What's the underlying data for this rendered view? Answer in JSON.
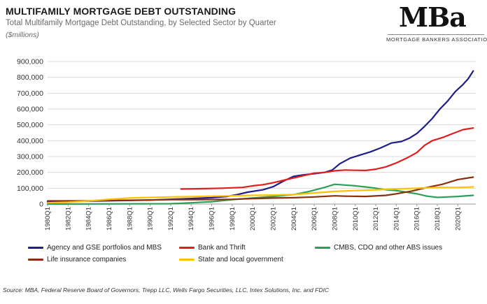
{
  "header": {
    "title": "MULTIFAMILY MORTGAGE DEBT OUTSTANDING",
    "subtitle": "Total Multifamily Mortgage Debt Outstanding, by Selected Sector by Quarter",
    "units": "($millions)"
  },
  "logo": {
    "word": "MBa",
    "tagline": "MORTGAGE BANKERS ASSOCIATION"
  },
  "source": "Source: MBA, Federal Reserve Board of Governors, Trepp LLC, Wells Fargo Securities, LLC, Intex Solutions, Inc. and FDIC",
  "chart_data": {
    "type": "line",
    "title": "MULTIFAMILY MORTGAGE DEBT OUTSTANDING",
    "ylabel": "($millions)",
    "xlabel": "",
    "ylim": [
      0,
      900000
    ],
    "yticks": [
      0,
      100000,
      200000,
      300000,
      400000,
      500000,
      600000,
      700000,
      800000,
      900000
    ],
    "ytick_labels": [
      "0",
      "100,000",
      "200,000",
      "300,000",
      "400,000",
      "500,000",
      "600,000",
      "700,000",
      "800,000",
      "900,000"
    ],
    "xlim": [
      1980.0,
      2021.75
    ],
    "xtick_labels": [
      "1980Q1",
      "1982Q1",
      "1984Q1",
      "1986Q1",
      "1988Q1",
      "1990Q1",
      "1992Q1",
      "1994Q1",
      "1996Q1",
      "1998Q1",
      "2000Q1",
      "2002Q1",
      "2004Q1",
      "2006Q1",
      "2008Q1",
      "2010Q1",
      "2012Q1",
      "2014Q1",
      "2016Q1",
      "2018Q1",
      "2020Q1"
    ],
    "grid": true,
    "legend_position": "bottom",
    "series": [
      {
        "name": "Agency and GSE portfolios and MBS",
        "color": "#1f1e8a",
        "points": [
          [
            1980,
            15000
          ],
          [
            1985,
            20000
          ],
          [
            1990,
            25000
          ],
          [
            1994,
            35000
          ],
          [
            1996,
            40000
          ],
          [
            1997.5,
            48000
          ],
          [
            1998.5,
            60000
          ],
          [
            1999.5,
            75000
          ],
          [
            2001,
            90000
          ],
          [
            2002,
            110000
          ],
          [
            2003,
            145000
          ],
          [
            2004,
            175000
          ],
          [
            2005,
            185000
          ],
          [
            2006,
            192000
          ],
          [
            2007,
            200000
          ],
          [
            2007.75,
            215000
          ],
          [
            2008.5,
            255000
          ],
          [
            2009.5,
            290000
          ],
          [
            2010.5,
            310000
          ],
          [
            2011.5,
            330000
          ],
          [
            2012.5,
            355000
          ],
          [
            2013.5,
            385000
          ],
          [
            2014.5,
            395000
          ],
          [
            2015.25,
            415000
          ],
          [
            2016,
            445000
          ],
          [
            2016.75,
            490000
          ],
          [
            2017.5,
            540000
          ],
          [
            2018.25,
            600000
          ],
          [
            2019,
            650000
          ],
          [
            2019.75,
            710000
          ],
          [
            2020.5,
            755000
          ],
          [
            2021,
            790000
          ],
          [
            2021.5,
            840000
          ]
        ]
      },
      {
        "name": "Bank and Thrift",
        "color": "#e31d1d",
        "points": [
          [
            1993,
            95000
          ],
          [
            1995,
            97000
          ],
          [
            1997,
            100000
          ],
          [
            1999,
            105000
          ],
          [
            2000,
            115000
          ],
          [
            2001,
            122000
          ],
          [
            2002,
            135000
          ],
          [
            2003,
            150000
          ],
          [
            2004,
            165000
          ],
          [
            2005,
            180000
          ],
          [
            2006,
            195000
          ],
          [
            2007,
            200000
          ],
          [
            2008,
            210000
          ],
          [
            2009,
            215000
          ],
          [
            2010,
            213000
          ],
          [
            2011,
            212000
          ],
          [
            2012,
            220000
          ],
          [
            2013,
            235000
          ],
          [
            2014,
            260000
          ],
          [
            2015,
            290000
          ],
          [
            2016,
            325000
          ],
          [
            2016.75,
            370000
          ],
          [
            2017.5,
            400000
          ],
          [
            2018.5,
            420000
          ],
          [
            2019.5,
            445000
          ],
          [
            2020.5,
            470000
          ],
          [
            2021.5,
            480000
          ]
        ]
      },
      {
        "name": "CMBS, CDO and other ABS issues",
        "color": "#2e9f5a",
        "points": [
          [
            1980,
            0
          ],
          [
            1992,
            2000
          ],
          [
            1994,
            8000
          ],
          [
            1996,
            15000
          ],
          [
            1998,
            28000
          ],
          [
            2000,
            38000
          ],
          [
            2002,
            48000
          ],
          [
            2004,
            60000
          ],
          [
            2005.5,
            80000
          ],
          [
            2007,
            105000
          ],
          [
            2008,
            125000
          ],
          [
            2009,
            120000
          ],
          [
            2010,
            115000
          ],
          [
            2011,
            108000
          ],
          [
            2012,
            100000
          ],
          [
            2013,
            90000
          ],
          [
            2014,
            85000
          ],
          [
            2015,
            75000
          ],
          [
            2016,
            65000
          ],
          [
            2017,
            50000
          ],
          [
            2018,
            42000
          ],
          [
            2019,
            45000
          ],
          [
            2020,
            48000
          ],
          [
            2021.5,
            55000
          ]
        ]
      },
      {
        "name": "Life insurance companies",
        "color": "#8b2e0a",
        "points": [
          [
            1980,
            20000
          ],
          [
            1983,
            20000
          ],
          [
            1986,
            22000
          ],
          [
            1989,
            25000
          ],
          [
            1992,
            28000
          ],
          [
            1995,
            28000
          ],
          [
            1998,
            30000
          ],
          [
            2000,
            35000
          ],
          [
            2002,
            38000
          ],
          [
            2004,
            40000
          ],
          [
            2006,
            45000
          ],
          [
            2008,
            52000
          ],
          [
            2009,
            50000
          ],
          [
            2011,
            48000
          ],
          [
            2013,
            55000
          ],
          [
            2014,
            65000
          ],
          [
            2015.5,
            82000
          ],
          [
            2017,
            105000
          ],
          [
            2018.5,
            125000
          ],
          [
            2020,
            155000
          ],
          [
            2021.5,
            170000
          ]
        ]
      },
      {
        "name": "State and local government",
        "color": "#ffc000",
        "points": [
          [
            1980,
            8000
          ],
          [
            1982,
            12000
          ],
          [
            1984,
            20000
          ],
          [
            1986,
            30000
          ],
          [
            1988,
            38000
          ],
          [
            1990,
            42000
          ],
          [
            1992,
            45000
          ],
          [
            1994,
            47000
          ],
          [
            1996,
            50000
          ],
          [
            1998,
            52000
          ],
          [
            2000,
            55000
          ],
          [
            2002,
            57000
          ],
          [
            2004,
            60000
          ],
          [
            2006,
            70000
          ],
          [
            2008,
            80000
          ],
          [
            2010,
            85000
          ],
          [
            2012,
            90000
          ],
          [
            2014,
            95000
          ],
          [
            2016,
            100000
          ],
          [
            2018,
            105000
          ],
          [
            2020,
            105000
          ],
          [
            2021.5,
            108000
          ]
        ]
      }
    ]
  }
}
